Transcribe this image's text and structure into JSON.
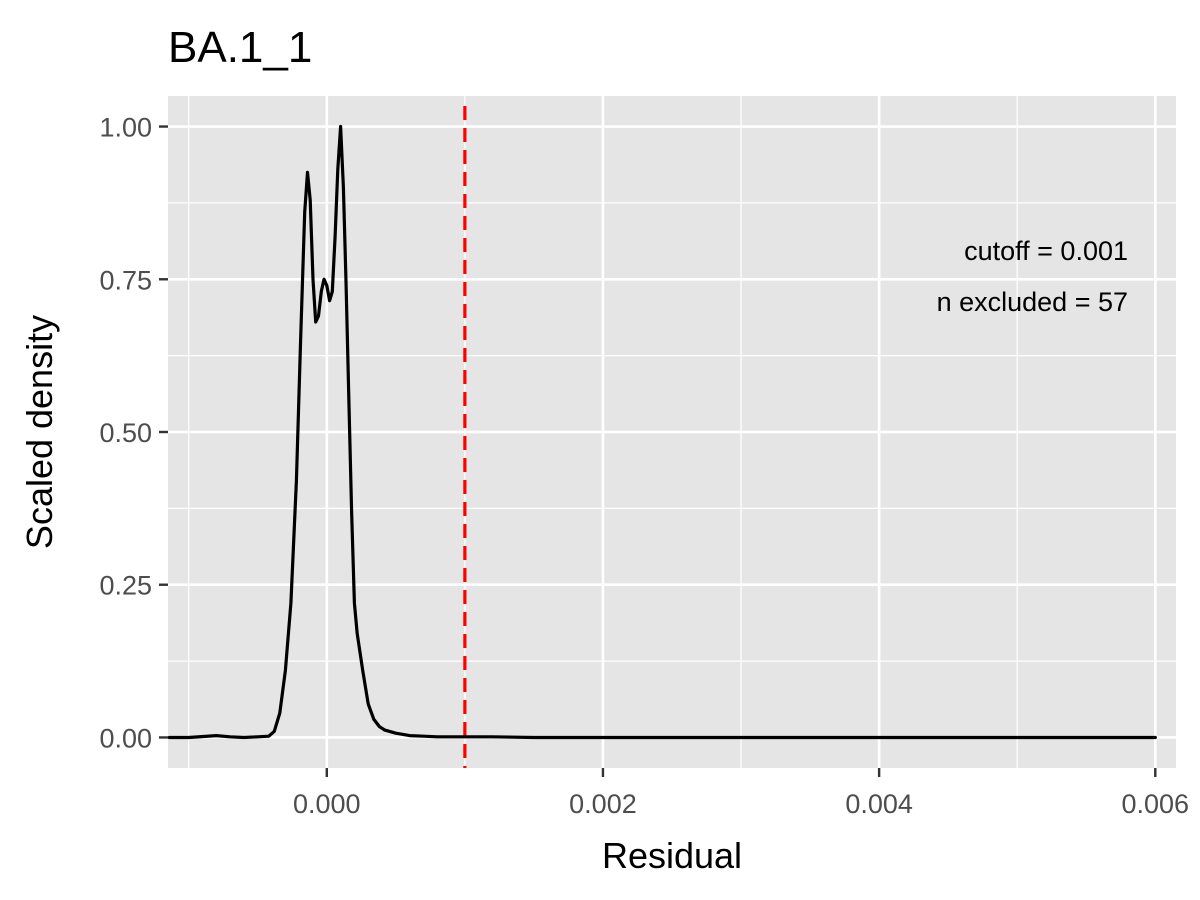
{
  "chart_data": {
    "type": "line",
    "title": "BA.1_1",
    "xlabel": "Residual",
    "ylabel": "Scaled density",
    "xlim": [
      -0.00115,
      0.00615
    ],
    "ylim": [
      -0.05,
      1.05
    ],
    "x_ticks": [
      0.0,
      0.002,
      0.004,
      0.006
    ],
    "x_tick_labels": [
      "0.000",
      "0.002",
      "0.004",
      "0.006"
    ],
    "y_ticks": [
      0.0,
      0.25,
      0.5,
      0.75,
      1.0
    ],
    "y_tick_labels": [
      "0.00",
      "0.25",
      "0.50",
      "0.75",
      "1.00"
    ],
    "grid": true,
    "background": "#e5e5e5",
    "grid_color": "#ffffff",
    "line_color": "#000000",
    "cutoff_line": {
      "x": 0.001,
      "color": "#ff0000",
      "style": "dashed"
    },
    "annotations": [
      "cutoff = 0.001",
      "n excluded = 57"
    ],
    "series": [
      {
        "x": [
          -0.00114,
          -0.001,
          -0.0008,
          -0.0007,
          -0.0006,
          -0.0005,
          -0.00042,
          -0.00038,
          -0.00034,
          -0.0003,
          -0.00026,
          -0.00022,
          -0.00019,
          -0.00016,
          -0.00014,
          -0.00012,
          -0.0001,
          -8e-05,
          -6e-05,
          -4e-05,
          -2e-05,
          0.0,
          2e-05,
          4e-05,
          6e-05,
          8e-05,
          0.0001,
          0.00012,
          0.00014,
          0.00016,
          0.00018,
          0.0002,
          0.00022,
          0.00026,
          0.0003,
          0.00034,
          0.00038,
          0.00042,
          0.0005,
          0.0006,
          0.0007,
          0.0008,
          0.001,
          0.0012,
          0.0015,
          0.002,
          0.003,
          0.004,
          0.005,
          0.006
        ],
        "values": [
          0.0,
          0.0,
          0.003,
          0.001,
          0.0,
          0.001,
          0.002,
          0.01,
          0.04,
          0.11,
          0.22,
          0.42,
          0.65,
          0.86,
          0.925,
          0.88,
          0.75,
          0.68,
          0.69,
          0.73,
          0.75,
          0.74,
          0.715,
          0.73,
          0.82,
          0.93,
          1.0,
          0.9,
          0.74,
          0.55,
          0.37,
          0.22,
          0.17,
          0.11,
          0.055,
          0.03,
          0.018,
          0.012,
          0.007,
          0.003,
          0.002,
          0.001,
          0.001,
          0.001,
          0.0,
          0.0,
          0.0,
          0.0,
          0.0,
          0.0
        ]
      }
    ]
  }
}
